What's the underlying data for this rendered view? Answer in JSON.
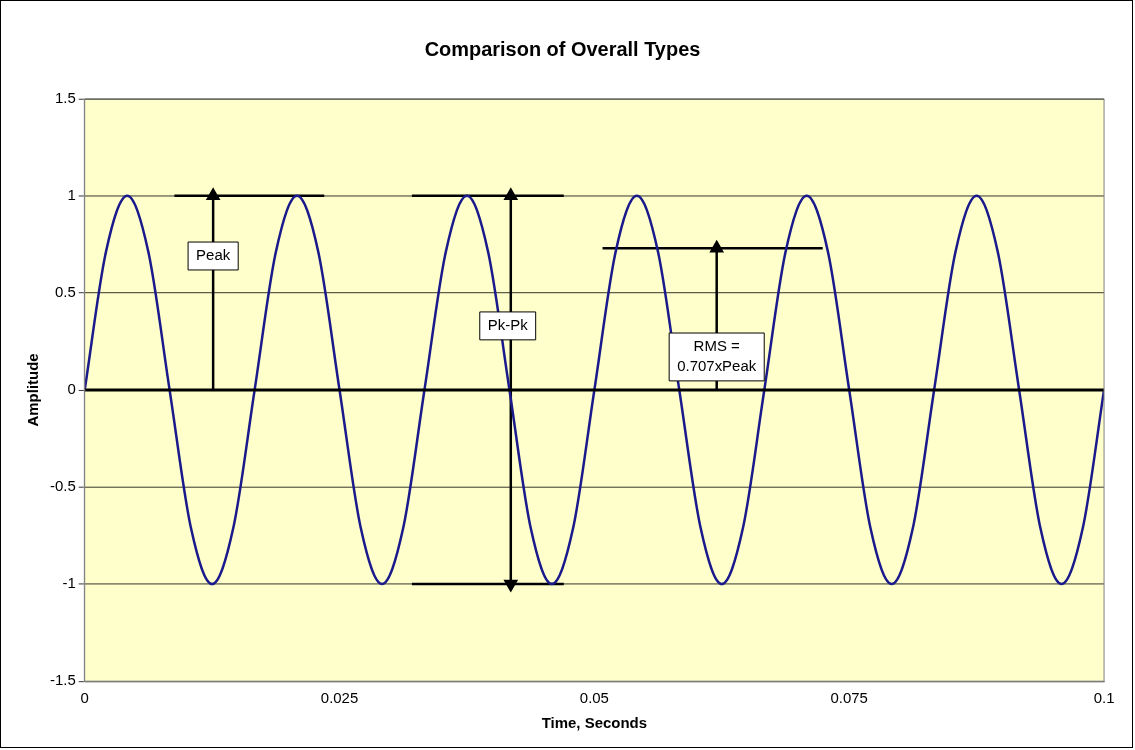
{
  "chart_data": {
    "type": "line",
    "title": "Comparison of Overall Types",
    "xlabel": "Time, Seconds",
    "ylabel": "Amplitude",
    "xlim": [
      0,
      0.1
    ],
    "xticks": [
      0,
      0.025,
      0.05,
      0.075,
      0.1
    ],
    "ylim": [
      -1.5,
      1.5
    ],
    "yticks": [
      -1.5,
      -1,
      -0.5,
      0,
      0.5,
      1,
      1.5
    ],
    "grid": "y",
    "legend": false,
    "marker": "none",
    "series": [
      {
        "color": "#1a1a8c",
        "x": [
          0,
          0.00208,
          0.00417,
          0.00625,
          0.00833,
          0.01042,
          0.0125,
          0.01458,
          0.01667,
          0.01875,
          0.02083,
          0.02292,
          0.025,
          0.02708,
          0.02917,
          0.03125,
          0.03333,
          0.03542,
          0.0375,
          0.03958,
          0.04167,
          0.04375,
          0.04583,
          0.04792,
          0.05,
          0.05208,
          0.05417,
          0.05625,
          0.05833,
          0.06042,
          0.0625,
          0.06458,
          0.06667,
          0.06875,
          0.07083,
          0.07292,
          0.075,
          0.07708,
          0.07917,
          0.08125,
          0.08333,
          0.08542,
          0.0875,
          0.08958,
          0.09167,
          0.09375,
          0.09583,
          0.09792,
          0.1
        ],
        "values": [
          0,
          0.71,
          1,
          0.71,
          0,
          -0.71,
          -1,
          -0.71,
          0,
          0.71,
          1,
          0.71,
          0,
          -0.71,
          -1,
          -0.71,
          0,
          0.71,
          1,
          0.71,
          0,
          -0.71,
          -1,
          -0.71,
          0,
          0.71,
          1,
          0.71,
          0,
          -0.71,
          -1,
          -0.71,
          0,
          0.71,
          1,
          0.71,
          0,
          -0.71,
          -1,
          -0.71,
          0,
          0.71,
          1,
          0.71,
          0,
          -0.71,
          -1,
          -0.71,
          0
        ]
      },
      {
        "color": "#000000",
        "x": [
          0.0088,
          0.0235
        ],
        "values": [
          1,
          1
        ]
      },
      {
        "color": "#000000",
        "x": [
          0.0321,
          0.047
        ],
        "values": [
          1,
          1
        ]
      },
      {
        "color": "#000000",
        "x": [
          0.0321,
          0.047
        ],
        "values": [
          -1,
          -1
        ]
      },
      {
        "color": "#000000",
        "x": [
          0.0508,
          0.0724
        ],
        "values": [
          0.73,
          0.73
        ]
      },
      {
        "color": "#000000",
        "marker": "triangle",
        "x": [
          0.0126,
          0.0126
        ],
        "values": [
          0,
          1
        ]
      },
      {
        "color": "#000000",
        "marker": "triangle",
        "x": [
          0.0418,
          0.0418
        ],
        "values": [
          -1,
          1
        ]
      },
      {
        "color": "#000000",
        "marker": "triangle",
        "x": [
          0.062,
          0.062
        ],
        "values": [
          0,
          0.73
        ]
      }
    ],
    "ref_lines": [
      {
        "axis": "y",
        "value": 0,
        "color": "#000000"
      }
    ],
    "annotations": [
      {
        "text": "Peak",
        "x": 0.0126,
        "y": 0.69
      },
      {
        "text": "Pk-Pk",
        "x": 0.0415,
        "y": 0.33
      },
      {
        "text": "RMS =\n0.707xPeak",
        "x": 0.062,
        "y": 0.17
      }
    ]
  }
}
